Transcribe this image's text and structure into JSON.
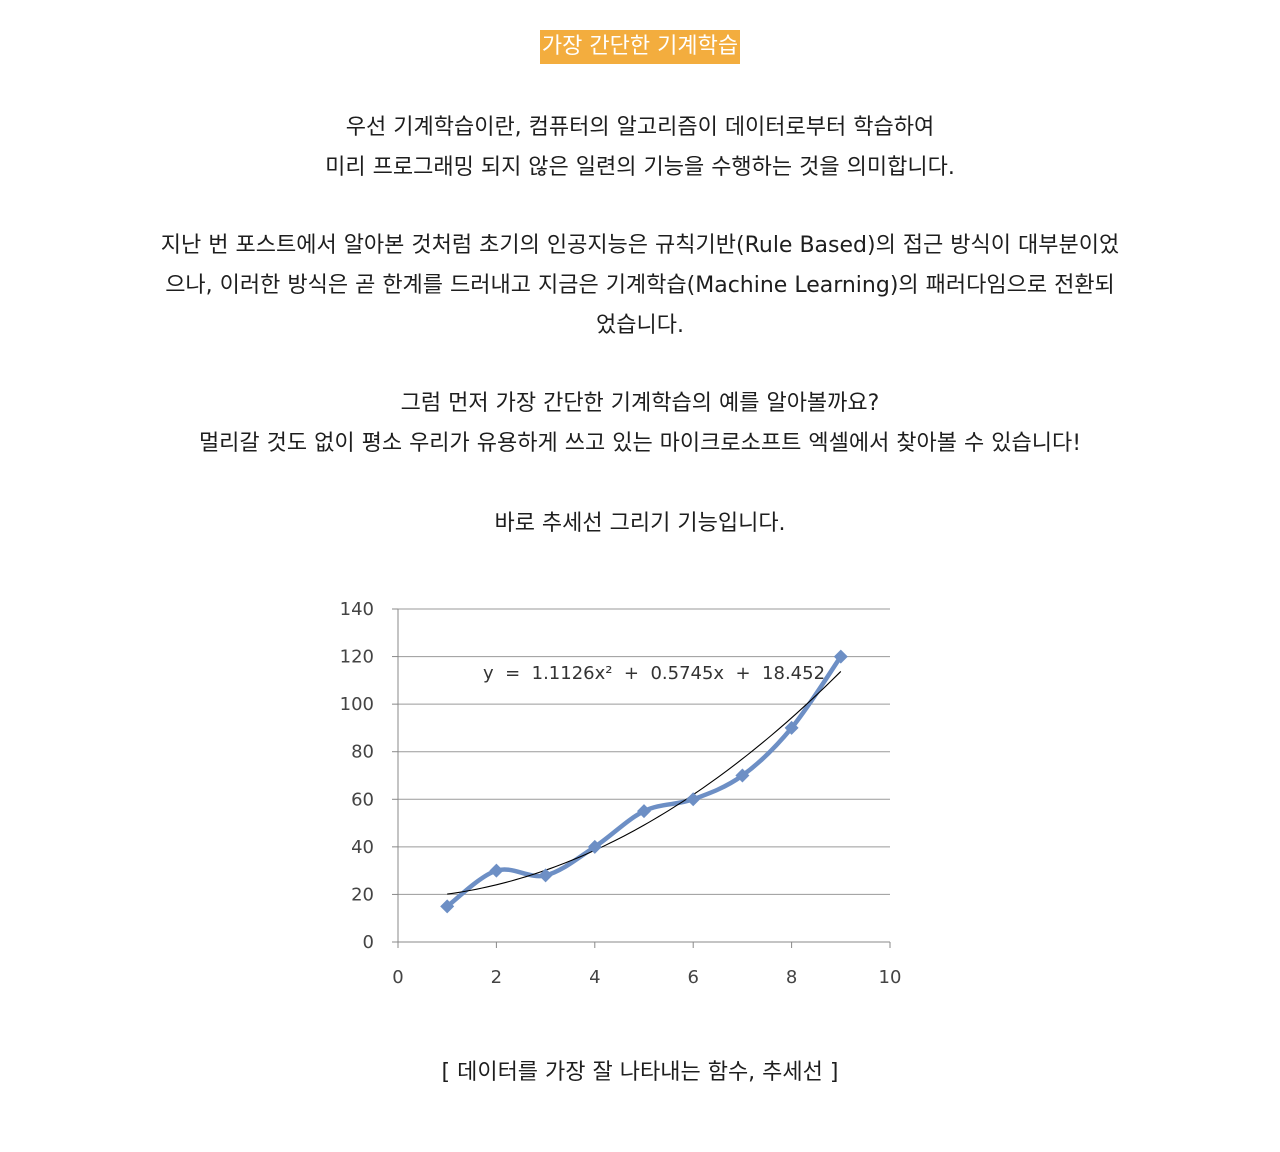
{
  "title": "가장 간단한 기계학습",
  "paragraphs": {
    "p1": [
      "우선 기계학습이란, 컴퓨터의 알고리즘이 데이터로부터 학습하여",
      "미리 프로그래밍 되지 않은 일련의 기능을 수행하는 것을 의미합니다."
    ],
    "p2": [
      "지난 번 포스트에서 알아본 것처럼 초기의 인공지능은 규칙기반(Rule Based)의 접근 방식이 대부분이었",
      "으나, 이러한 방식은 곧 한계를 드러내고 지금은 기계학습(Machine Learning)의 패러다임으로 전환되",
      "었습니다."
    ],
    "p3": [
      "그럼 먼저 가장 간단한 기계학습의 예를 알아볼까요?",
      "멀리갈 것도 없이 평소 우리가 유용하게 쓰고 있는 마이크로소프트 엑셀에서 찾아볼 수 있습니다!"
    ],
    "p4": [
      "바로 추세선 그리기 기능입니다."
    ]
  },
  "caption": "[ 데이터를 가장 잘 나타내는 함수, 추세선 ]",
  "chart_data": {
    "type": "scatter",
    "x": [
      1,
      2,
      3,
      4,
      5,
      6,
      7,
      8,
      9
    ],
    "y": [
      15,
      30,
      28,
      40,
      55,
      60,
      70,
      90,
      120
    ],
    "xlim": [
      0,
      10
    ],
    "ylim": [
      0,
      140
    ],
    "xticks": [
      "0",
      "2",
      "4",
      "6",
      "8",
      "10"
    ],
    "yticks": [
      "0",
      "20",
      "40",
      "60",
      "80",
      "100",
      "120",
      "140"
    ],
    "trendline": {
      "type": "polynomial",
      "coefficients": [
        1.1126,
        0.5745,
        18.452
      ],
      "equation": "y  =  1.1126x²  +  0.5745x  +  18.452"
    },
    "grid": "horizontal",
    "series_color": "#6d8fc5",
    "trend_color": "#000000"
  }
}
